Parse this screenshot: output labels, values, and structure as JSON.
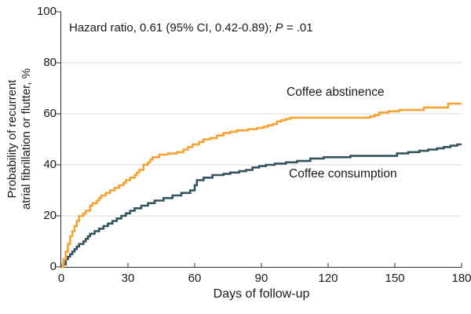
{
  "figure": {
    "annotation": {
      "prefix": "Hazard ratio, 0.61 (95% CI, 0.42-0.89); ",
      "p_symbol": "P",
      "p_rest": " = .01"
    }
  },
  "chart_data": {
    "type": "line",
    "step_interpolation": "step-after",
    "title": "",
    "xlabel": "Days of follow-up",
    "ylabel_lines": [
      "Probability of recurrent",
      "atrial fibrillation or flutter, %"
    ],
    "xlim": [
      0,
      180
    ],
    "ylim": [
      0,
      100
    ],
    "xticks": [
      0,
      30,
      60,
      90,
      120,
      150,
      180
    ],
    "yticks": [
      0,
      20,
      40,
      60,
      80,
      100
    ],
    "grid": "horizontal gridlines at 20, 40, 60, 80",
    "legend_position": "inline labels next to curves",
    "annotation": "Hazard ratio, 0.61 (95% CI, 0.42-0.89); P = .01",
    "colors": {
      "abstinence_curve": "#F7A233",
      "consumption_curve": "#33545F",
      "grid": "#DBDBDB",
      "axis": "#2E2E2E",
      "text": "#1A1A1A"
    },
    "series": [
      {
        "name": "Coffee abstinence",
        "color": "#F7A233",
        "points": [
          [
            0,
            0
          ],
          [
            1,
            3
          ],
          [
            2,
            6
          ],
          [
            3,
            9
          ],
          [
            4,
            12
          ],
          [
            5,
            14
          ],
          [
            6,
            16
          ],
          [
            7,
            18
          ],
          [
            8,
            20
          ],
          [
            10,
            21
          ],
          [
            11,
            22
          ],
          [
            13,
            24
          ],
          [
            14,
            25
          ],
          [
            16,
            26
          ],
          [
            17,
            27
          ],
          [
            18,
            28
          ],
          [
            20,
            29
          ],
          [
            22,
            30
          ],
          [
            24,
            31
          ],
          [
            26,
            32
          ],
          [
            28,
            33
          ],
          [
            29,
            34
          ],
          [
            31,
            35
          ],
          [
            33,
            36
          ],
          [
            34,
            37
          ],
          [
            35,
            38
          ],
          [
            37,
            40
          ],
          [
            39,
            41
          ],
          [
            40,
            42
          ],
          [
            41,
            43
          ],
          [
            44,
            44
          ],
          [
            48,
            44.5
          ],
          [
            52,
            45
          ],
          [
            55,
            46
          ],
          [
            57,
            47
          ],
          [
            59,
            48
          ],
          [
            62,
            49
          ],
          [
            64,
            50
          ],
          [
            67,
            50.5
          ],
          [
            70,
            51.5
          ],
          [
            73,
            52.5
          ],
          [
            76,
            53
          ],
          [
            79,
            53.5
          ],
          [
            84,
            54
          ],
          [
            88,
            54.5
          ],
          [
            91,
            55
          ],
          [
            93,
            55.5
          ],
          [
            95,
            56
          ],
          [
            97,
            57
          ],
          [
            99,
            57.5
          ],
          [
            101,
            58
          ],
          [
            103,
            58.5
          ],
          [
            139,
            59
          ],
          [
            141,
            59.5
          ],
          [
            143,
            60.5
          ],
          [
            147,
            61
          ],
          [
            152,
            61.5
          ],
          [
            163,
            62.5
          ],
          [
            174,
            64
          ],
          [
            180,
            64
          ]
        ]
      },
      {
        "name": "Coffee consumption",
        "color": "#33545F",
        "points": [
          [
            0,
            0
          ],
          [
            1,
            1
          ],
          [
            2,
            3
          ],
          [
            3,
            4
          ],
          [
            4,
            5
          ],
          [
            5,
            6
          ],
          [
            6,
            7
          ],
          [
            7,
            8
          ],
          [
            8,
            9
          ],
          [
            10,
            10
          ],
          [
            11,
            11
          ],
          [
            12,
            12
          ],
          [
            13,
            13
          ],
          [
            15,
            14
          ],
          [
            17,
            15
          ],
          [
            19,
            16
          ],
          [
            21,
            17
          ],
          [
            23,
            18
          ],
          [
            25,
            19
          ],
          [
            27,
            20
          ],
          [
            29,
            21
          ],
          [
            31,
            22
          ],
          [
            33,
            23
          ],
          [
            36,
            24
          ],
          [
            39,
            25
          ],
          [
            42,
            26
          ],
          [
            46,
            27
          ],
          [
            50,
            28
          ],
          [
            54,
            29
          ],
          [
            58,
            30
          ],
          [
            60,
            32
          ],
          [
            61,
            34
          ],
          [
            64,
            35
          ],
          [
            68,
            36
          ],
          [
            73,
            36.5
          ],
          [
            76,
            37
          ],
          [
            80,
            37.5
          ],
          [
            83,
            38
          ],
          [
            86,
            39
          ],
          [
            89,
            39.5
          ],
          [
            92,
            40
          ],
          [
            96,
            40.5
          ],
          [
            101,
            41
          ],
          [
            106,
            41.5
          ],
          [
            112,
            42.5
          ],
          [
            118,
            43
          ],
          [
            130,
            43.5
          ],
          [
            151,
            44.5
          ],
          [
            156,
            45
          ],
          [
            161,
            45.5
          ],
          [
            165,
            46
          ],
          [
            169,
            46.5
          ],
          [
            172,
            47
          ],
          [
            175,
            47.5
          ],
          [
            178,
            48
          ],
          [
            180,
            48
          ]
        ]
      }
    ]
  }
}
